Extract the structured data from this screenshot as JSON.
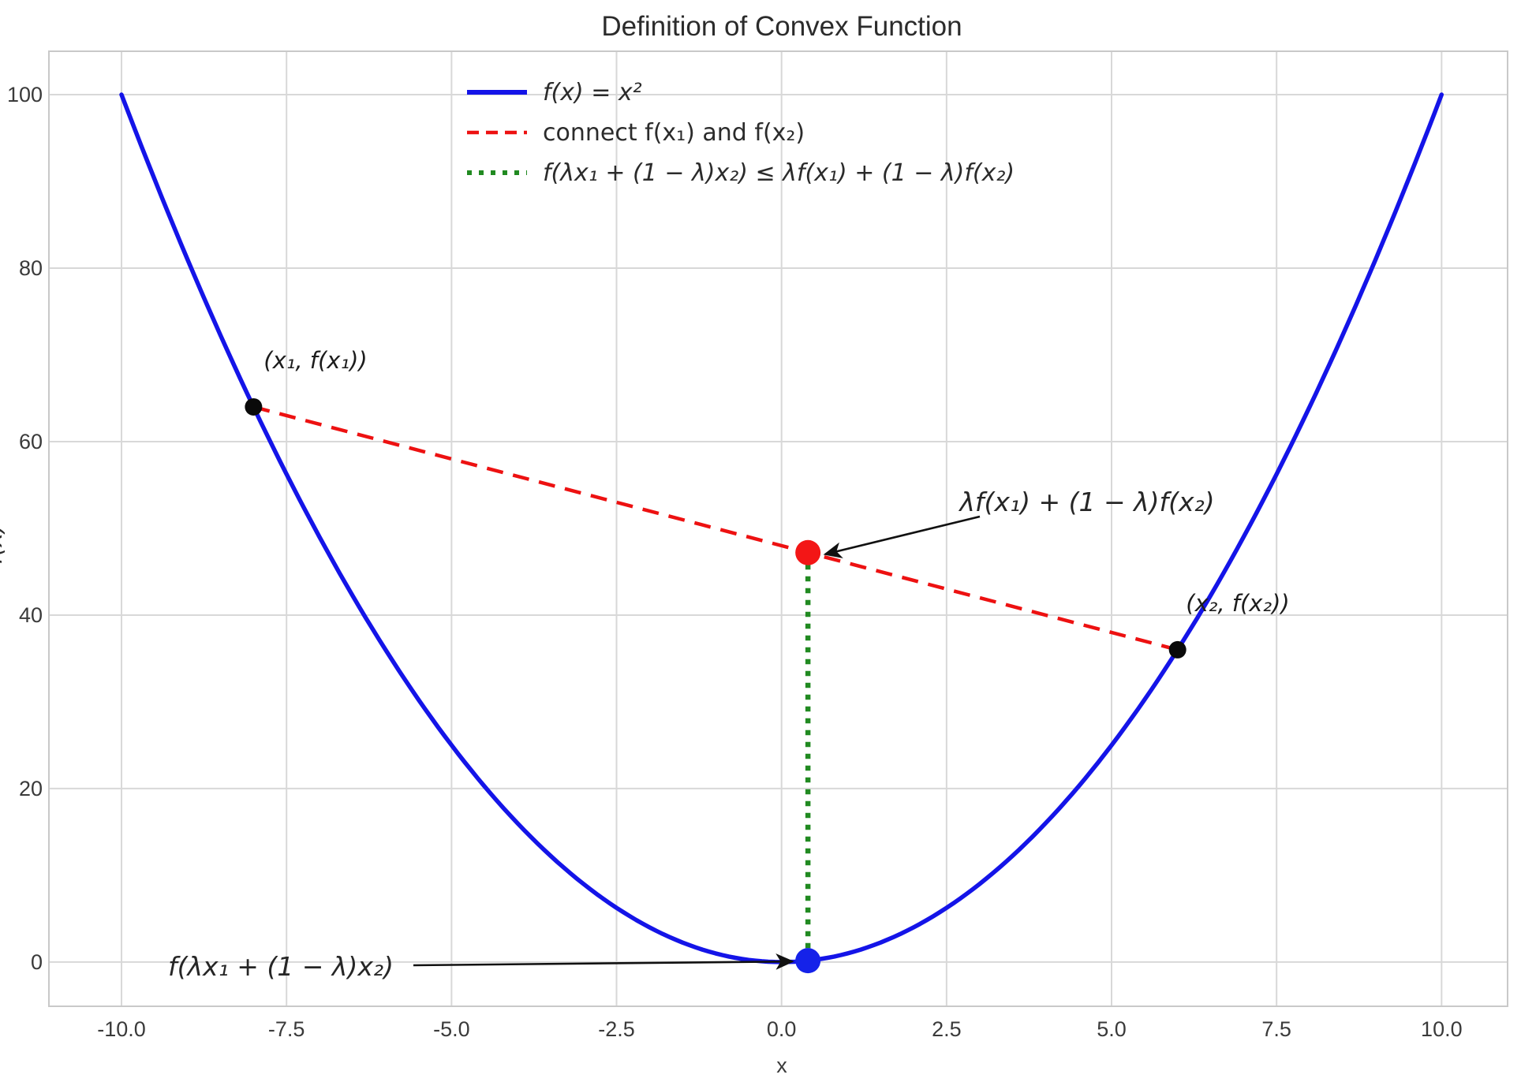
{
  "title": "Definition of Convex Function",
  "axes": {
    "xlabel": "x",
    "ylabel": "f(x)",
    "x_tick_values": [
      -10,
      -7.5,
      -5,
      -2.5,
      0,
      2.5,
      5,
      7.5,
      10
    ],
    "x_tick_labels": [
      "-10.0",
      "-7.5",
      "-5.0",
      "-2.5",
      "0.0",
      "2.5",
      "5.0",
      "7.5",
      "10.0"
    ],
    "y_tick_values": [
      0,
      20,
      40,
      60,
      80,
      100
    ],
    "y_tick_labels": [
      "0",
      "20",
      "40",
      "60",
      "80",
      "100"
    ],
    "xlim": [
      -11.1,
      11.0
    ],
    "ylim": [
      -5.1,
      105
    ],
    "grid": true
  },
  "legend": {
    "position": "upper center-left",
    "items": [
      {
        "label": "f(x) = x²",
        "color": "#1414e8",
        "style": "solid",
        "italic": true
      },
      {
        "label": "connect f(x₁) and f(x₂)",
        "color": "#ed1111",
        "style": "dashed",
        "italic": false
      },
      {
        "label": "f(λx₁ + (1 − λ)x₂) ≤ λf(x₁) + (1 − λ)f(x₂)",
        "color": "#218a21",
        "style": "dotted",
        "italic": true
      }
    ]
  },
  "annotations": {
    "chord_value": {
      "text": "λf(x₁) + (1 − λ)f(x₂)",
      "color": "#ed1111",
      "arrow_to": [
        0.4,
        47.2
      ]
    },
    "function_value": {
      "text": "f(λx₁ + (1 − λ)x₂)",
      "color": "#1414e8",
      "arrow_to": [
        0.4,
        0.16
      ]
    }
  },
  "colors": {
    "curve": "#1414e8",
    "chord": "#ed1111",
    "dotted": "#218a21",
    "point_black": "#0a0a0a",
    "point_red": "#f31616",
    "point_blue": "#1522e9",
    "grid": "#d8d8d8",
    "spine": "#c9c9c9",
    "arrow": "#111111",
    "background": "#ffffff"
  },
  "chart_data": {
    "type": "line",
    "title": "Definition of Convex Function",
    "xlabel": "x",
    "ylabel": "f(x)",
    "xlim": [
      -11.1,
      11.0
    ],
    "ylim": [
      -5.1,
      105
    ],
    "grid": "on",
    "legend_position": "upper center-left",
    "lambda": 0.4,
    "x1": -8,
    "x2": 6,
    "series": [
      {
        "name": "f(x) = x²",
        "kind": "function",
        "expr": "x^2",
        "x_range": [
          -10,
          10
        ],
        "style": "solid",
        "color": "#1414e8",
        "width": 5.5
      },
      {
        "name": "connect f(x₁) and f(x₂)",
        "kind": "segment",
        "points": [
          [
            -8,
            64
          ],
          [
            6,
            36
          ]
        ],
        "style": "dashed",
        "color": "#ed1111",
        "width": 4.5
      },
      {
        "name": "f(λx₁ + (1 − λ)x₂) ≤ λf(x₁) + (1 − λ)f(x₂)",
        "kind": "segment",
        "points": [
          [
            0.4,
            47.2
          ],
          [
            0.4,
            0.16
          ]
        ],
        "style": "dotted",
        "color": "#218a21",
        "width": 6.5
      }
    ],
    "points": [
      {
        "x": -8,
        "y": 64,
        "color": "#0a0a0a",
        "r": 11,
        "label": "(x₁, f(x₁))"
      },
      {
        "x": 6,
        "y": 36,
        "color": "#0a0a0a",
        "r": 11,
        "label": "(x₂, f(x₂))"
      },
      {
        "x": 0.4,
        "y": 47.2,
        "color": "#f31616",
        "r": 16,
        "label": "λf(x₁) + (1 − λ)f(x₂)"
      },
      {
        "x": 0.4,
        "y": 0.16,
        "color": "#1522e9",
        "r": 16,
        "label": "f(λx₁ + (1 − λ)x₂)"
      }
    ]
  }
}
